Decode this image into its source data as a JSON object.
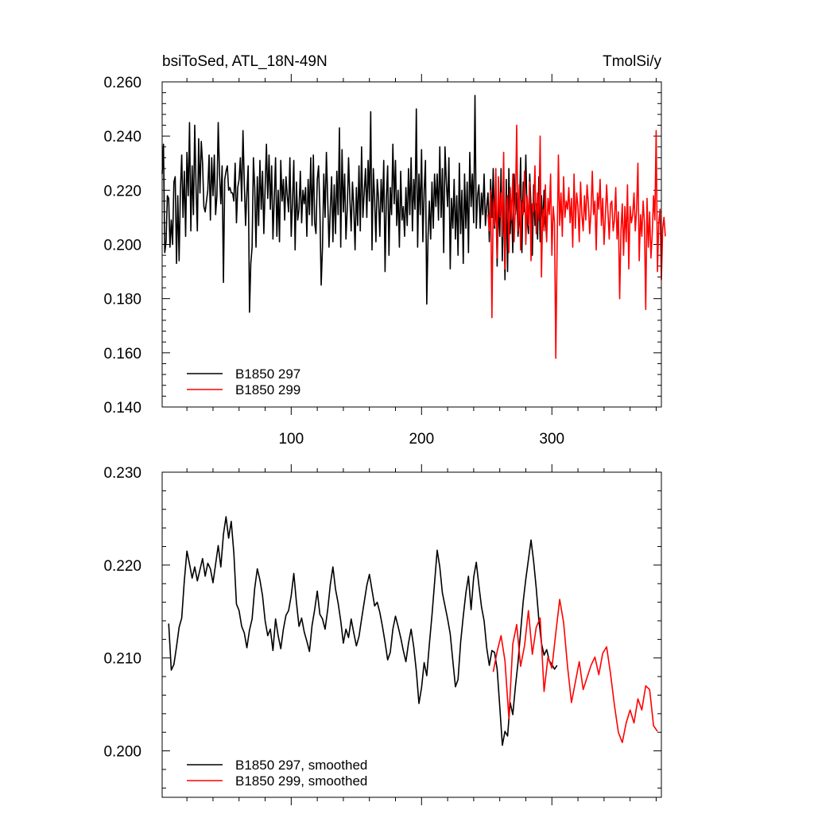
{
  "chart_data": [
    {
      "type": "line",
      "title": "bsiToSed, ATL_18N-49N",
      "units": "TmolSi/y",
      "xlabel": "",
      "ylabel": "",
      "xlim": [
        1,
        384
      ],
      "ylim": [
        0.14,
        0.26
      ],
      "xticks": [
        100,
        200,
        300
      ],
      "xtick_labels": [
        "100",
        "200",
        "300"
      ],
      "yticks": [
        0.14,
        0.16,
        0.18,
        0.2,
        0.22,
        0.24,
        0.26
      ],
      "ytick_labels": [
        "0.140",
        "0.160",
        "0.180",
        "0.200",
        "0.220",
        "0.240",
        "0.260"
      ],
      "legend_position": "bottom-left",
      "series": [
        {
          "name": "B1850 297",
          "color": "#000000",
          "x_start": 1,
          "values": [
            0.226,
            0.237,
            0.197,
            0.201,
            0.218,
            0.217,
            0.199,
            0.209,
            0.2,
            0.223,
            0.225,
            0.193,
            0.218,
            0.194,
            0.22,
            0.233,
            0.21,
            0.227,
            0.203,
            0.234,
            0.218,
            0.245,
            0.205,
            0.229,
            0.211,
            0.244,
            0.221,
            0.205,
            0.239,
            0.219,
            0.238,
            0.23,
            0.214,
            0.212,
            0.216,
            0.22,
            0.233,
            0.209,
            0.232,
            0.218,
            0.233,
            0.211,
            0.218,
            0.245,
            0.226,
            0.215,
            0.229,
            0.186,
            0.224,
            0.227,
            0.229,
            0.22,
            0.221,
            0.219,
            0.219,
            0.216,
            0.23,
            0.208,
            0.221,
            0.224,
            0.232,
            0.216,
            0.242,
            0.223,
            0.207,
            0.219,
            0.229,
            0.175,
            0.193,
            0.199,
            0.232,
            0.221,
            0.199,
            0.225,
            0.207,
            0.231,
            0.213,
            0.227,
            0.204,
            0.221,
            0.237,
            0.217,
            0.233,
            0.213,
            0.229,
            0.202,
            0.217,
            0.232,
            0.203,
            0.22,
            0.201,
            0.231,
            0.216,
            0.224,
            0.209,
            0.225,
            0.218,
            0.212,
            0.232,
            0.203,
            0.216,
            0.231,
            0.198,
            0.223,
            0.209,
            0.213,
            0.227,
            0.208,
            0.22,
            0.215,
            0.221,
            0.203,
            0.224,
            0.211,
            0.232,
            0.207,
            0.233,
            0.208,
            0.204,
            0.224,
            0.229,
            0.213,
            0.185,
            0.199,
            0.226,
            0.21,
            0.234,
            0.217,
            0.199,
            0.213,
            0.225,
            0.201,
            0.222,
            0.204,
            0.227,
            0.211,
            0.243,
            0.199,
            0.235,
            0.212,
            0.226,
            0.202,
            0.213,
            0.232,
            0.217,
            0.205,
            0.223,
            0.214,
            0.198,
            0.221,
            0.207,
            0.229,
            0.205,
            0.236,
            0.21,
            0.219,
            0.228,
            0.21,
            0.231,
            0.216,
            0.249,
            0.198,
            0.228,
            0.217,
            0.201,
            0.224,
            0.217,
            0.203,
            0.224,
            0.212,
            0.231,
            0.19,
            0.217,
            0.229,
            0.196,
            0.221,
            0.211,
            0.237,
            0.215,
            0.231,
            0.207,
            0.22,
            0.199,
            0.227,
            0.209,
            0.214,
            0.203,
            0.221,
            0.207,
            0.228,
            0.211,
            0.232,
            0.205,
            0.224,
            0.213,
            0.25,
            0.199,
            0.226,
            0.211,
            0.235,
            0.201,
            0.22,
            0.231,
            0.178,
            0.203,
            0.216,
            0.202,
            0.223,
            0.206,
            0.226,
            0.214,
            0.226,
            0.209,
            0.236,
            0.21,
            0.228,
            0.197,
            0.236,
            0.223,
            0.214,
            0.232,
            0.191,
            0.217,
            0.206,
            0.224,
            0.202,
            0.218,
            0.196,
            0.23,
            0.204,
            0.22,
            0.193,
            0.226,
            0.206,
            0.223,
            0.197,
            0.234,
            0.214,
            0.226,
            0.208,
            0.255,
            0.206,
            0.218,
            0.222,
            0.206,
            0.219,
            0.211,
            0.226,
            0.207,
            0.214,
            0.219,
            0.201,
            0.224,
            0.21,
            0.228,
            0.206,
            0.219,
            0.192,
            0.215,
            0.203,
            0.228,
            0.194,
            0.221,
            0.187,
            0.224,
            0.19,
            0.228,
            0.204,
            0.216,
            0.197,
            0.226,
            0.211,
            0.219,
            0.203,
            0.21,
            0.232,
            0.197,
            0.223,
            0.212,
            0.233,
            0.21,
            0.204,
            0.226,
            0.214,
            0.196,
            0.222,
            0.207,
            0.215,
            0.202,
            0.225,
            0.201,
            0.218,
            0.207,
            0.22,
            0.209,
            0.202
          ]
        },
        {
          "name": "B1850 299",
          "color": "#ff0000",
          "x_start": 251,
          "values": [
            0.211,
            0.205,
            0.22,
            0.173,
            0.216,
            0.207,
            0.228,
            0.195,
            0.225,
            0.21,
            0.219,
            0.203,
            0.234,
            0.191,
            0.213,
            0.218,
            0.197,
            0.221,
            0.209,
            0.226,
            0.201,
            0.214,
            0.244,
            0.205,
            0.222,
            0.198,
            0.216,
            0.211,
            0.227,
            0.2,
            0.218,
            0.207,
            0.223,
            0.194,
            0.215,
            0.212,
            0.229,
            0.204,
            0.219,
            0.209,
            0.24,
            0.188,
            0.213,
            0.205,
            0.222,
            0.201,
            0.217,
            0.211,
            0.226,
            0.196,
            0.214,
            0.208,
            0.158,
            0.199,
            0.233,
            0.207,
            0.219,
            0.203,
            0.225,
            0.21,
            0.216,
            0.213,
            0.221,
            0.208,
            0.217,
            0.199,
            0.226,
            0.206,
            0.219,
            0.214,
            0.201,
            0.223,
            0.211,
            0.205,
            0.218,
            0.209,
            0.222,
            0.215,
            0.204,
            0.212,
            0.227,
            0.211,
            0.216,
            0.198,
            0.219,
            0.213,
            0.224,
            0.207,
            0.217,
            0.2,
            0.21,
            0.222,
            0.212,
            0.202,
            0.215,
            0.216,
            0.205,
            0.209,
            0.221,
            0.202,
            0.212,
            0.18,
            0.205,
            0.215,
            0.196,
            0.214,
            0.201,
            0.222,
            0.191,
            0.214,
            0.208,
            0.211,
            0.219,
            0.205,
            0.213,
            0.23,
            0.194,
            0.211,
            0.203,
            0.216,
            0.208,
            0.176,
            0.217,
            0.199,
            0.212,
            0.195,
            0.204,
            0.218,
            0.209,
            0.242,
            0.19,
            0.208,
            0.213,
            0.187,
            0.206,
            0.21,
            0.203
          ]
        }
      ]
    },
    {
      "type": "line",
      "title": "",
      "xlabel": "",
      "ylabel": "",
      "xlim": [
        1,
        384
      ],
      "ylim": [
        0.195,
        0.23
      ],
      "xticks": [
        100,
        200,
        300
      ],
      "xtick_labels": [
        "",
        "",
        ""
      ],
      "yticks": [
        0.2,
        0.21,
        0.22,
        0.23
      ],
      "ytick_labels": [
        "0.200",
        "0.210",
        "0.220",
        "0.230"
      ],
      "legend_position": "bottom-left",
      "series": [
        {
          "name": "B1850 297, smoothed",
          "color": "#000000",
          "x": [
            6,
            8,
            10,
            12,
            14,
            16,
            18,
            20,
            22,
            24,
            26,
            28,
            30,
            32,
            34,
            36,
            38,
            40,
            42,
            44,
            46,
            48,
            50,
            52,
            54,
            56,
            58,
            60,
            62,
            64,
            66,
            68,
            70,
            72,
            74,
            76,
            78,
            80,
            82,
            84,
            86,
            88,
            90,
            92,
            94,
            96,
            98,
            100,
            102,
            104,
            106,
            108,
            110,
            112,
            114,
            116,
            118,
            120,
            122,
            124,
            126,
            128,
            130,
            132,
            134,
            136,
            138,
            140,
            142,
            144,
            146,
            148,
            150,
            152,
            154,
            156,
            158,
            160,
            162,
            164,
            166,
            168,
            170,
            172,
            174,
            176,
            178,
            180,
            182,
            184,
            186,
            188,
            190,
            192,
            194,
            196,
            198,
            200,
            202,
            204,
            206,
            208,
            210,
            212,
            214,
            216,
            218,
            220,
            222,
            224,
            226,
            228,
            230,
            232,
            234,
            236,
            238,
            240,
            242,
            244,
            246,
            248,
            250,
            252,
            254,
            256,
            258,
            260,
            262,
            264,
            266,
            268,
            270,
            272,
            274,
            276,
            278,
            280,
            282,
            284,
            286,
            288,
            290,
            292,
            294,
            296,
            298,
            300,
            302,
            304
          ],
          "values": [
            0.2137,
            0.2087,
            0.2093,
            0.2112,
            0.2133,
            0.2143,
            0.2183,
            0.2215,
            0.2201,
            0.2186,
            0.2198,
            0.2183,
            0.2195,
            0.2207,
            0.2188,
            0.2202,
            0.2196,
            0.2181,
            0.2201,
            0.2221,
            0.2198,
            0.2233,
            0.2252,
            0.2229,
            0.2247,
            0.2213,
            0.2158,
            0.2151,
            0.2134,
            0.2127,
            0.2111,
            0.213,
            0.2142,
            0.2175,
            0.2196,
            0.2184,
            0.2167,
            0.214,
            0.2124,
            0.2131,
            0.2108,
            0.2142,
            0.2124,
            0.211,
            0.2131,
            0.2146,
            0.2151,
            0.2167,
            0.2191,
            0.216,
            0.2134,
            0.2143,
            0.2128,
            0.2118,
            0.2107,
            0.2135,
            0.2152,
            0.2172,
            0.2147,
            0.2142,
            0.2131,
            0.2152,
            0.2179,
            0.2198,
            0.2174,
            0.2159,
            0.214,
            0.2116,
            0.2131,
            0.2122,
            0.2142,
            0.2127,
            0.2113,
            0.2123,
            0.2142,
            0.216,
            0.2178,
            0.219,
            0.2173,
            0.2156,
            0.216,
            0.2149,
            0.2134,
            0.2117,
            0.2098,
            0.2106,
            0.2131,
            0.2145,
            0.2134,
            0.2122,
            0.2108,
            0.2096,
            0.2116,
            0.2131,
            0.2112,
            0.2086,
            0.2051,
            0.2068,
            0.2095,
            0.2081,
            0.2115,
            0.2146,
            0.2181,
            0.2216,
            0.2198,
            0.217,
            0.2156,
            0.2142,
            0.2126,
            0.2097,
            0.2069,
            0.2077,
            0.2117,
            0.2145,
            0.217,
            0.2188,
            0.2152,
            0.2187,
            0.2203,
            0.2178,
            0.2155,
            0.214,
            0.2111,
            0.2092,
            0.2108,
            0.2106,
            0.2088,
            0.2048,
            0.2006,
            0.2021,
            0.2016,
            0.2052,
            0.2039,
            0.2069,
            0.2095,
            0.2128,
            0.2161,
            0.2185,
            0.2206,
            0.2227,
            0.2204,
            0.2175,
            0.2141,
            0.2116,
            0.2103,
            0.2109,
            0.2097,
            0.2093,
            0.2088,
            0.2092
          ]
        },
        {
          "name": "B1850 299, smoothed",
          "color": "#ff0000",
          "x": [
            255,
            258,
            261,
            264,
            267,
            270,
            273,
            276,
            279,
            282,
            285,
            288,
            291,
            294,
            297,
            300,
            303,
            306,
            309,
            312,
            315,
            318,
            321,
            324,
            327,
            330,
            333,
            336,
            339,
            342,
            345,
            348,
            351,
            354,
            357,
            360,
            363,
            366,
            369,
            372,
            375,
            378,
            381
          ],
          "values": [
            0.2085,
            0.2107,
            0.2124,
            0.2097,
            0.2035,
            0.2115,
            0.2136,
            0.2091,
            0.2113,
            0.2151,
            0.2104,
            0.2133,
            0.2143,
            0.2064,
            0.2101,
            0.2089,
            0.2127,
            0.2163,
            0.2138,
            0.2091,
            0.2052,
            0.2074,
            0.2096,
            0.2066,
            0.2079,
            0.2092,
            0.2101,
            0.2082,
            0.2105,
            0.2112,
            0.2083,
            0.2049,
            0.202,
            0.2009,
            0.203,
            0.2044,
            0.203,
            0.2056,
            0.2044,
            0.207,
            0.2066,
            0.2027,
            0.2021
          ]
        }
      ]
    }
  ]
}
